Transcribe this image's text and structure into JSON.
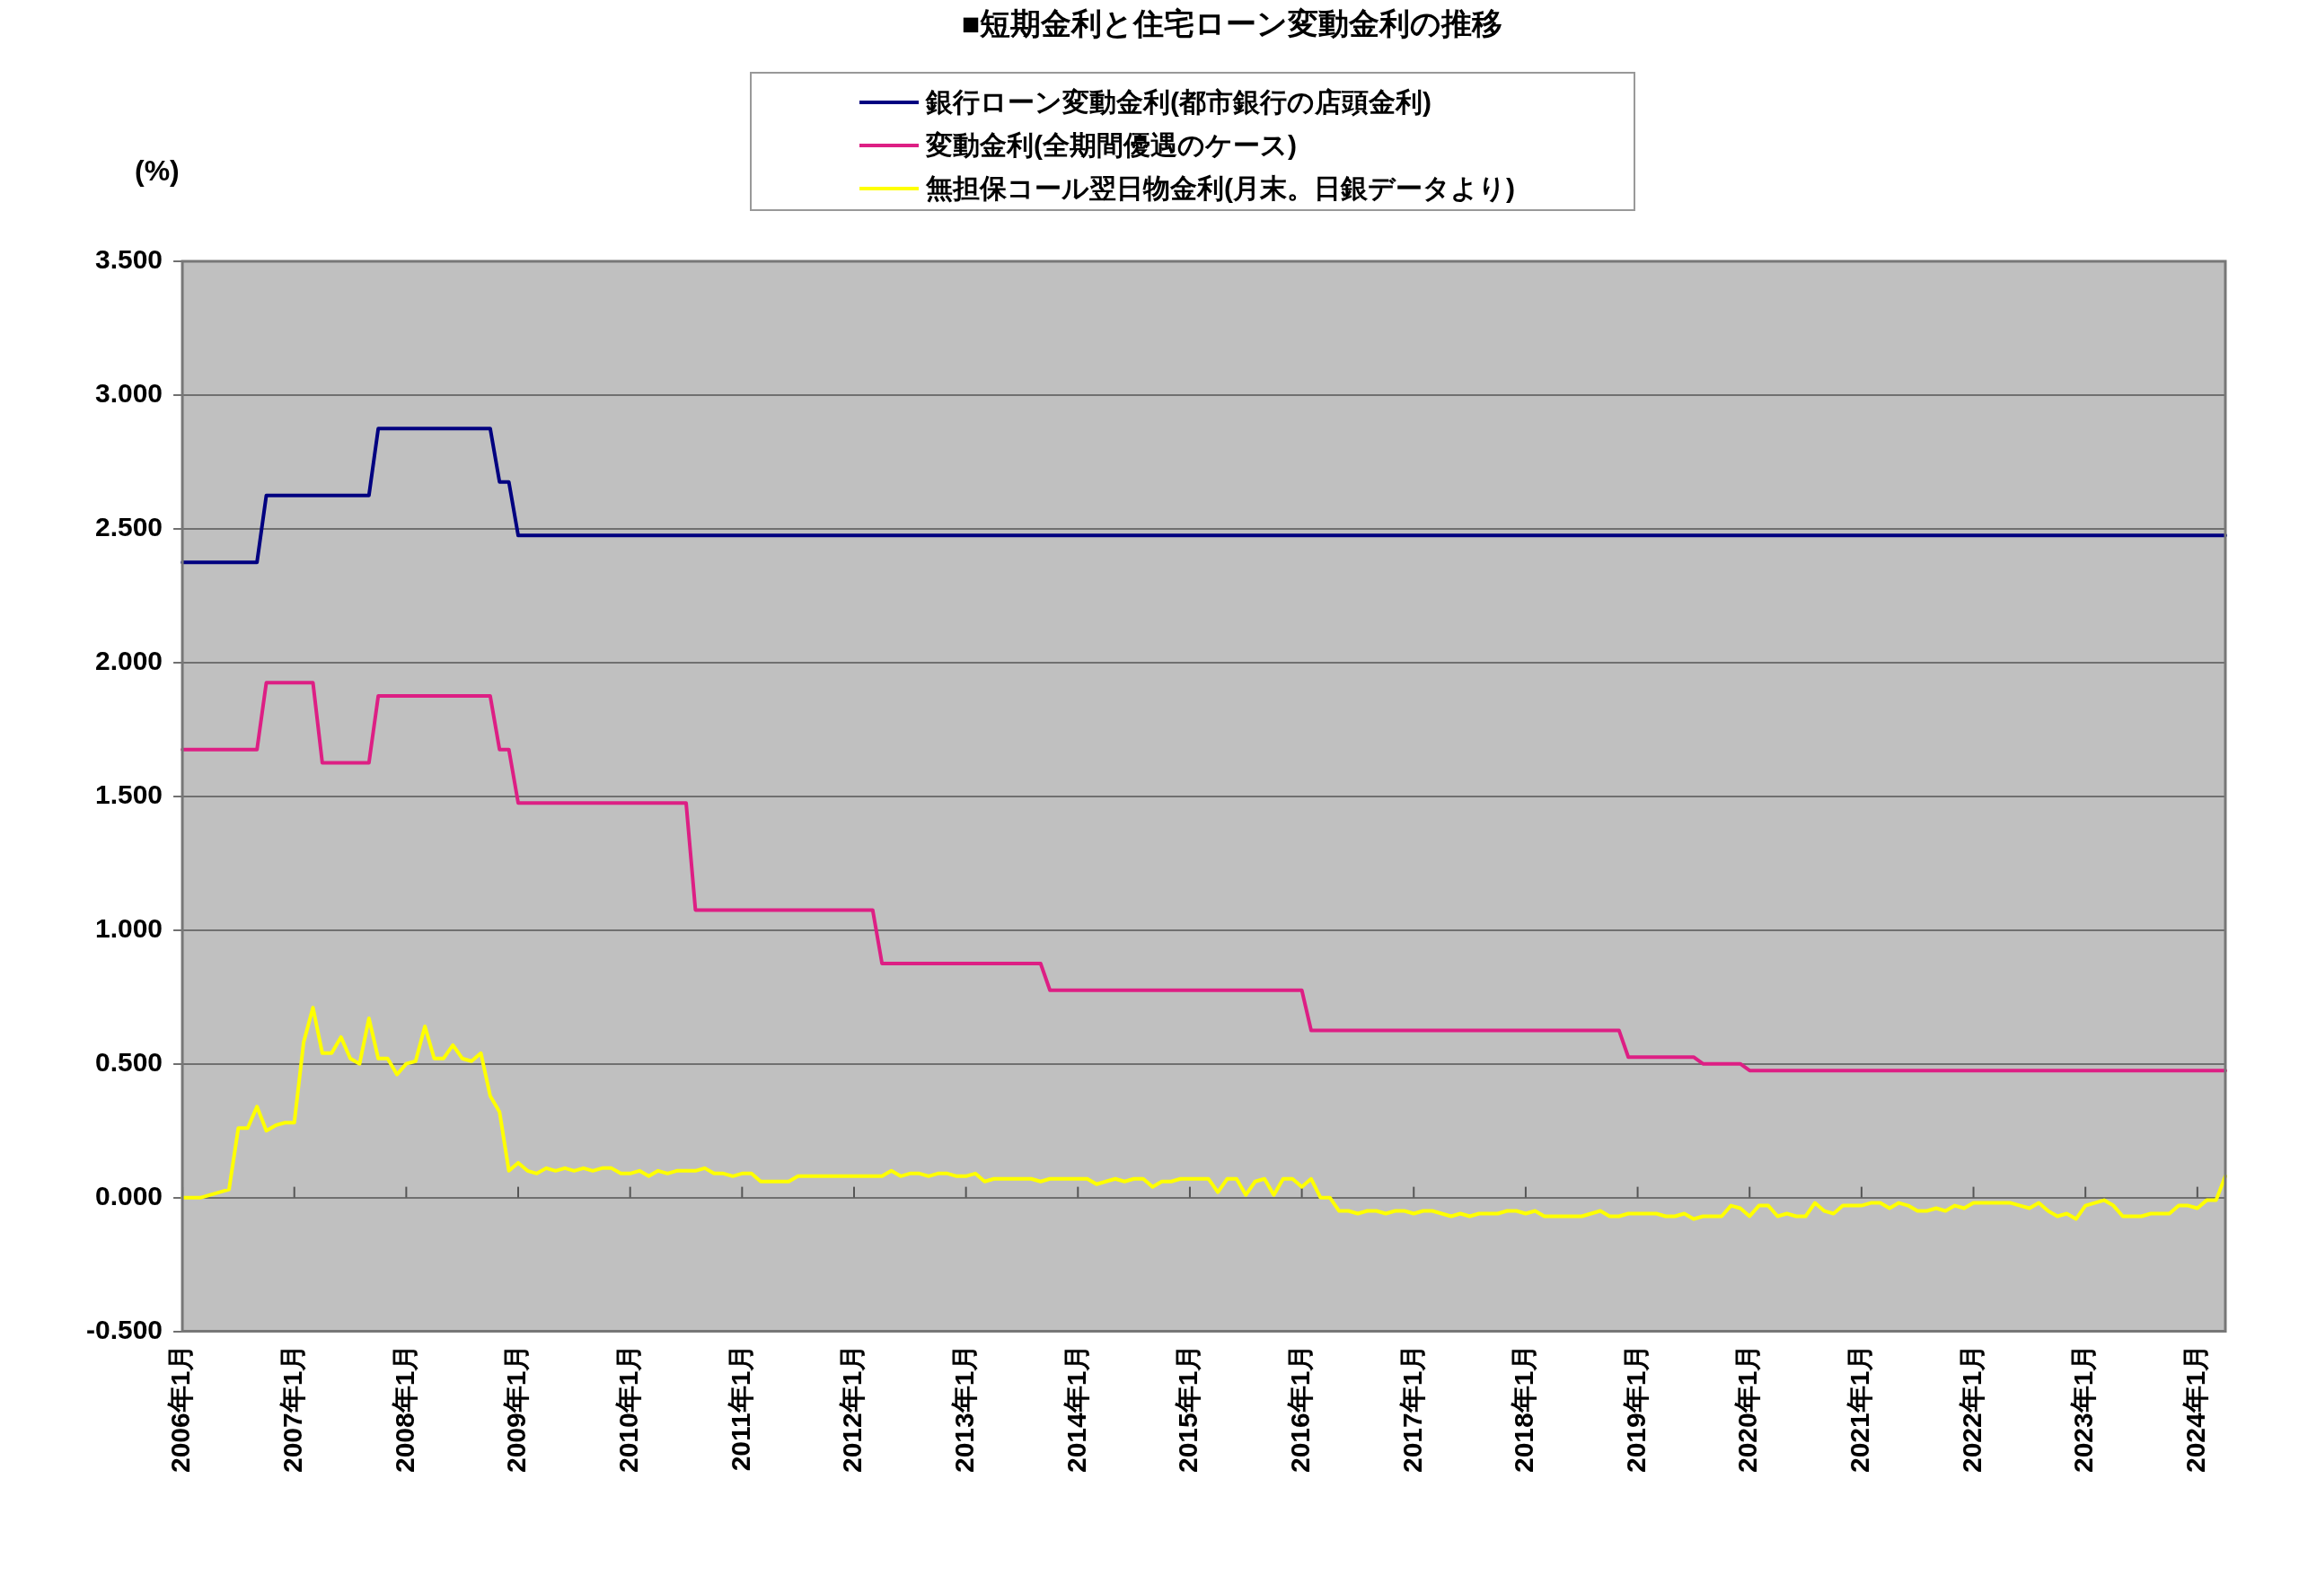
{
  "chart_data": {
    "type": "line",
    "title": "■短期金利と住宅ローン変動金利の推移",
    "ylabel": "(%)",
    "categories": [
      "2006年1月",
      null,
      null,
      null,
      null,
      null,
      null,
      null,
      null,
      null,
      null,
      null,
      "2007年1月",
      null,
      null,
      null,
      null,
      null,
      null,
      null,
      null,
      null,
      null,
      null,
      "2008年1月",
      null,
      null,
      null,
      null,
      null,
      null,
      null,
      null,
      null,
      null,
      null,
      "2009年1月",
      null,
      null,
      null,
      null,
      null,
      null,
      null,
      null,
      null,
      null,
      null,
      "2010年1月",
      null,
      null,
      null,
      null,
      null,
      null,
      null,
      null,
      null,
      null,
      null,
      "2011年1月",
      null,
      null,
      null,
      null,
      null,
      null,
      null,
      null,
      null,
      null,
      null,
      "2012年1月",
      null,
      null,
      null,
      null,
      null,
      null,
      null,
      null,
      null,
      null,
      null,
      "2013年1月",
      null,
      null,
      null,
      null,
      null,
      null,
      null,
      null,
      null,
      null,
      null,
      "2014年1月",
      null,
      null,
      null,
      null,
      null,
      null,
      null,
      null,
      null,
      null,
      null,
      "2015年1月",
      null,
      null,
      null,
      null,
      null,
      null,
      null,
      null,
      null,
      null,
      null,
      "2016年1月",
      null,
      null,
      null,
      null,
      null,
      null,
      null,
      null,
      null,
      null,
      null,
      "2017年1月",
      null,
      null,
      null,
      null,
      null,
      null,
      null,
      null,
      null,
      null,
      null,
      "2018年1月",
      null,
      null,
      null,
      null,
      null,
      null,
      null,
      null,
      null,
      null,
      null,
      "2019年1月",
      null,
      null,
      null,
      null,
      null,
      null,
      null,
      null,
      null,
      null,
      null,
      "2020年1月",
      null,
      null,
      null,
      null,
      null,
      null,
      null,
      null,
      null,
      null,
      null,
      "2021年1月",
      null,
      null,
      null,
      null,
      null,
      null,
      null,
      null,
      null,
      null,
      null,
      "2022年1月",
      null,
      null,
      null,
      null,
      null,
      null,
      null,
      null,
      null,
      null,
      null,
      "2023年1月",
      null,
      null,
      null,
      null,
      null,
      null,
      null,
      null,
      null,
      null,
      null,
      "2024年1月",
      null,
      null,
      null
    ],
    "series": [
      {
        "name": "銀行ローン変動金利(都市銀行の店頭金利)",
        "color": "#000080",
        "values": [
          2.375,
          2.375,
          2.375,
          2.375,
          2.375,
          2.375,
          2.375,
          2.375,
          2.375,
          2.625,
          2.625,
          2.625,
          2.625,
          2.625,
          2.625,
          2.625,
          2.625,
          2.625,
          2.625,
          2.625,
          2.625,
          2.875,
          2.875,
          2.875,
          2.875,
          2.875,
          2.875,
          2.875,
          2.875,
          2.875,
          2.875,
          2.875,
          2.875,
          2.875,
          2.675,
          2.675,
          2.475,
          2.475,
          2.475,
          2.475,
          2.475,
          2.475,
          2.475,
          2.475,
          2.475,
          2.475,
          2.475,
          2.475,
          2.475,
          2.475,
          2.475,
          2.475,
          2.475,
          2.475,
          2.475,
          2.475,
          2.475,
          2.475,
          2.475,
          2.475,
          2.475,
          2.475,
          2.475,
          2.475,
          2.475,
          2.475,
          2.475,
          2.475,
          2.475,
          2.475,
          2.475,
          2.475,
          2.475,
          2.475,
          2.475,
          2.475,
          2.475,
          2.475,
          2.475,
          2.475,
          2.475,
          2.475,
          2.475,
          2.475,
          2.475,
          2.475,
          2.475,
          2.475,
          2.475,
          2.475,
          2.475,
          2.475,
          2.475,
          2.475,
          2.475,
          2.475,
          2.475,
          2.475,
          2.475,
          2.475,
          2.475,
          2.475,
          2.475,
          2.475,
          2.475,
          2.475,
          2.475,
          2.475,
          2.475,
          2.475,
          2.475,
          2.475,
          2.475,
          2.475,
          2.475,
          2.475,
          2.475,
          2.475,
          2.475,
          2.475,
          2.475,
          2.475,
          2.475,
          2.475,
          2.475,
          2.475,
          2.475,
          2.475,
          2.475,
          2.475,
          2.475,
          2.475,
          2.475,
          2.475,
          2.475,
          2.475,
          2.475,
          2.475,
          2.475,
          2.475,
          2.475,
          2.475,
          2.475,
          2.475,
          2.475,
          2.475,
          2.475,
          2.475,
          2.475,
          2.475,
          2.475,
          2.475,
          2.475,
          2.475,
          2.475,
          2.475,
          2.475,
          2.475,
          2.475,
          2.475,
          2.475,
          2.475,
          2.475,
          2.475,
          2.475,
          2.475,
          2.475,
          2.475,
          2.475,
          2.475,
          2.475,
          2.475,
          2.475,
          2.475,
          2.475,
          2.475,
          2.475,
          2.475,
          2.475,
          2.475,
          2.475,
          2.475,
          2.475,
          2.475,
          2.475,
          2.475,
          2.475,
          2.475,
          2.475,
          2.475,
          2.475,
          2.475,
          2.475,
          2.475,
          2.475,
          2.475,
          2.475,
          2.475,
          2.475,
          2.475,
          2.475,
          2.475,
          2.475,
          2.475,
          2.475,
          2.475,
          2.475,
          2.475,
          2.475,
          2.475,
          2.475,
          2.475,
          2.475,
          2.475,
          2.475,
          2.475,
          2.475,
          2.475,
          2.475,
          2.475
        ]
      },
      {
        "name": "変動金利(全期間優遇のケース)",
        "color": "#dd1f84",
        "values": [
          1.675,
          1.675,
          1.675,
          1.675,
          1.675,
          1.675,
          1.675,
          1.675,
          1.675,
          1.925,
          1.925,
          1.925,
          1.925,
          1.925,
          1.925,
          1.625,
          1.625,
          1.625,
          1.625,
          1.625,
          1.625,
          1.875,
          1.875,
          1.875,
          1.875,
          1.875,
          1.875,
          1.875,
          1.875,
          1.875,
          1.875,
          1.875,
          1.875,
          1.875,
          1.675,
          1.675,
          1.475,
          1.475,
          1.475,
          1.475,
          1.475,
          1.475,
          1.475,
          1.475,
          1.475,
          1.475,
          1.475,
          1.475,
          1.475,
          1.475,
          1.475,
          1.475,
          1.475,
          1.475,
          1.475,
          1.075,
          1.075,
          1.075,
          1.075,
          1.075,
          1.075,
          1.075,
          1.075,
          1.075,
          1.075,
          1.075,
          1.075,
          1.075,
          1.075,
          1.075,
          1.075,
          1.075,
          1.075,
          1.075,
          1.075,
          0.875,
          0.875,
          0.875,
          0.875,
          0.875,
          0.875,
          0.875,
          0.875,
          0.875,
          0.875,
          0.875,
          0.875,
          0.875,
          0.875,
          0.875,
          0.875,
          0.875,
          0.875,
          0.775,
          0.775,
          0.775,
          0.775,
          0.775,
          0.775,
          0.775,
          0.775,
          0.775,
          0.775,
          0.775,
          0.775,
          0.775,
          0.775,
          0.775,
          0.775,
          0.775,
          0.775,
          0.775,
          0.775,
          0.775,
          0.775,
          0.775,
          0.775,
          0.775,
          0.775,
          0.775,
          0.775,
          0.625,
          0.625,
          0.625,
          0.625,
          0.625,
          0.625,
          0.625,
          0.625,
          0.625,
          0.625,
          0.625,
          0.625,
          0.625,
          0.625,
          0.625,
          0.625,
          0.625,
          0.625,
          0.625,
          0.625,
          0.625,
          0.625,
          0.625,
          0.625,
          0.625,
          0.625,
          0.625,
          0.625,
          0.625,
          0.625,
          0.625,
          0.625,
          0.625,
          0.625,
          0.525,
          0.525,
          0.525,
          0.525,
          0.525,
          0.525,
          0.525,
          0.525,
          0.5,
          0.5,
          0.5,
          0.5,
          0.5,
          0.475,
          0.475,
          0.475,
          0.475,
          0.475,
          0.475,
          0.475,
          0.475,
          0.475,
          0.475,
          0.475,
          0.475,
          0.475,
          0.475,
          0.475,
          0.475,
          0.475,
          0.475,
          0.475,
          0.475,
          0.475,
          0.475,
          0.475,
          0.475,
          0.475,
          0.475,
          0.475,
          0.475,
          0.475,
          0.475,
          0.475,
          0.475,
          0.475,
          0.475,
          0.475,
          0.475,
          0.475,
          0.475,
          0.475,
          0.475,
          0.475,
          0.475,
          0.475,
          0.475,
          0.475,
          0.475,
          0.475,
          0.475,
          0.475,
          0.475,
          0.475,
          0.475
        ]
      },
      {
        "name": "無担保コール翌日物金利(月末。日銀データより)",
        "color": "#ffff00",
        "values": [
          0.0,
          0.0,
          0.0,
          0.01,
          0.02,
          0.03,
          0.26,
          0.26,
          0.34,
          0.25,
          0.27,
          0.28,
          0.28,
          0.58,
          0.71,
          0.54,
          0.54,
          0.6,
          0.52,
          0.5,
          0.67,
          0.52,
          0.52,
          0.46,
          0.5,
          0.51,
          0.64,
          0.52,
          0.52,
          0.57,
          0.52,
          0.51,
          0.54,
          0.38,
          0.32,
          0.1,
          0.13,
          0.1,
          0.09,
          0.11,
          0.1,
          0.11,
          0.1,
          0.11,
          0.1,
          0.11,
          0.11,
          0.09,
          0.09,
          0.1,
          0.08,
          0.1,
          0.09,
          0.1,
          0.1,
          0.1,
          0.11,
          0.09,
          0.09,
          0.08,
          0.09,
          0.09,
          0.06,
          0.06,
          0.06,
          0.06,
          0.08,
          0.08,
          0.08,
          0.08,
          0.08,
          0.08,
          0.08,
          0.08,
          0.08,
          0.08,
          0.1,
          0.08,
          0.09,
          0.09,
          0.08,
          0.09,
          0.09,
          0.08,
          0.08,
          0.09,
          0.06,
          0.07,
          0.07,
          0.07,
          0.07,
          0.07,
          0.06,
          0.07,
          0.07,
          0.07,
          0.07,
          0.07,
          0.05,
          0.06,
          0.07,
          0.06,
          0.07,
          0.07,
          0.04,
          0.06,
          0.06,
          0.07,
          0.07,
          0.07,
          0.07,
          0.02,
          0.07,
          0.07,
          0.01,
          0.06,
          0.07,
          0.01,
          0.07,
          0.07,
          0.04,
          0.07,
          0.0,
          0.0,
          -0.05,
          -0.05,
          -0.06,
          -0.05,
          -0.05,
          -0.06,
          -0.05,
          -0.05,
          -0.06,
          -0.05,
          -0.05,
          -0.06,
          -0.07,
          -0.06,
          -0.07,
          -0.06,
          -0.06,
          -0.06,
          -0.05,
          -0.05,
          -0.06,
          -0.05,
          -0.07,
          -0.07,
          -0.07,
          -0.07,
          -0.07,
          -0.06,
          -0.05,
          -0.07,
          -0.07,
          -0.06,
          -0.06,
          -0.06,
          -0.06,
          -0.07,
          -0.07,
          -0.06,
          -0.08,
          -0.07,
          -0.07,
          -0.07,
          -0.03,
          -0.04,
          -0.07,
          -0.03,
          -0.03,
          -0.07,
          -0.06,
          -0.07,
          -0.07,
          -0.02,
          -0.05,
          -0.06,
          -0.03,
          -0.03,
          -0.03,
          -0.02,
          -0.02,
          -0.04,
          -0.02,
          -0.03,
          -0.05,
          -0.05,
          -0.04,
          -0.05,
          -0.03,
          -0.04,
          -0.02,
          -0.02,
          -0.02,
          -0.02,
          -0.02,
          -0.03,
          -0.04,
          -0.02,
          -0.05,
          -0.07,
          -0.06,
          -0.08,
          -0.03,
          -0.02,
          -0.01,
          -0.03,
          -0.07,
          -0.07,
          -0.07,
          -0.06,
          -0.06,
          -0.06,
          -0.03,
          -0.03,
          -0.04,
          -0.01,
          -0.01,
          0.08
        ]
      }
    ],
    "ylim": [
      -0.5,
      3.5
    ],
    "yticks": [
      {
        "value": -0.5,
        "label": "-0.500"
      },
      {
        "value": 0,
        "label": "0.000"
      },
      {
        "value": 0.5,
        "label": "0.500"
      },
      {
        "value": 1,
        "label": "1.000"
      },
      {
        "value": 1.5,
        "label": "1.500"
      },
      {
        "value": 2,
        "label": "2.000"
      },
      {
        "value": 2.5,
        "label": "2.500"
      },
      {
        "value": 3,
        "label": "3.000"
      },
      {
        "value": 3.5,
        "label": "3.500"
      }
    ],
    "grid": "y",
    "legend": "top",
    "marker": "none",
    "line_style": "solid"
  }
}
